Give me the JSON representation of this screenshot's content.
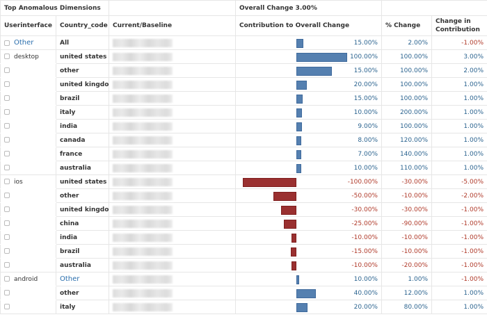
{
  "header": {
    "title": "Top Anomalous Dimensions",
    "overall_change": "Overall Change 3.00%"
  },
  "columns": [
    "Userinterface",
    "Country_code",
    "Current/Baseline",
    "Contribution to Overall Change",
    "% Change",
    "Change in Contribution"
  ],
  "colors": {
    "positive": "#2c6490",
    "negative": "#b03a2a",
    "bar_positive": "#5580b0",
    "bar_negative": "#9a3030"
  },
  "rows": [
    {
      "ui": "Other",
      "ui_link": true,
      "country": "All",
      "contribution": "15.00%",
      "bar": 0.13,
      "pct": "2.00%",
      "cic": "-1.00%"
    },
    {
      "ui": "desktop",
      "country": "united states",
      "contribution": "100.00%",
      "bar": 0.95,
      "pct": "100.00%",
      "cic": "3.00%"
    },
    {
      "ui": "",
      "country": "other",
      "contribution": "15.00%",
      "bar": 0.66,
      "pct": "100.00%",
      "cic": "2.00%"
    },
    {
      "ui": "",
      "country": "united kingdom",
      "contribution": "20.00%",
      "bar": 0.19,
      "pct": "100.00%",
      "cic": "1.00%"
    },
    {
      "ui": "",
      "country": "brazil",
      "contribution": "15.00%",
      "bar": 0.12,
      "pct": "100.00%",
      "cic": "1.00%"
    },
    {
      "ui": "",
      "country": "italy",
      "contribution": "10.00%",
      "bar": 0.1,
      "pct": "200.00%",
      "cic": "1.00%"
    },
    {
      "ui": "",
      "country": "india",
      "contribution": "9.00%",
      "bar": 0.1,
      "pct": "100.00%",
      "cic": "1.00%"
    },
    {
      "ui": "",
      "country": "canada",
      "contribution": "8.00%",
      "bar": 0.09,
      "pct": "120.00%",
      "cic": "1.00%"
    },
    {
      "ui": "",
      "country": "france",
      "contribution": "7.00%",
      "bar": 0.09,
      "pct": "140.00%",
      "cic": "1.00%"
    },
    {
      "ui": "",
      "country": "australia",
      "contribution": "10.00%",
      "bar": 0.09,
      "pct": "110.00%",
      "cic": "1.00%"
    },
    {
      "ui": "ios",
      "country": "united states",
      "contribution": "-100.00%",
      "bar": -1.0,
      "pct": "-30.00%",
      "cic": "-5.00%"
    },
    {
      "ui": "",
      "country": "other",
      "contribution": "-50.00%",
      "bar": -0.43,
      "pct": "-10.00%",
      "cic": "-2.00%"
    },
    {
      "ui": "",
      "country": "united kingdom",
      "contribution": "-30.00%",
      "bar": -0.29,
      "pct": "-30.00%",
      "cic": "-1.00%"
    },
    {
      "ui": "",
      "country": "china",
      "contribution": "-25.00%",
      "bar": -0.23,
      "pct": "-90.00%",
      "cic": "-1.00%"
    },
    {
      "ui": "",
      "country": "india",
      "contribution": "-10.00%",
      "bar": -0.09,
      "pct": "-10.00%",
      "cic": "-1.00%"
    },
    {
      "ui": "",
      "country": "brazil",
      "contribution": "-15.00%",
      "bar": -0.1,
      "pct": "-10.00%",
      "cic": "-1.00%"
    },
    {
      "ui": "",
      "country": "australia",
      "contribution": "-10.00%",
      "bar": -0.09,
      "pct": "-20.00%",
      "cic": "-1.00%"
    },
    {
      "ui": "android",
      "country": "Other",
      "country_link": true,
      "contribution": "10.00%",
      "bar": 0.05,
      "pct": "1.00%",
      "cic": "-1.00%"
    },
    {
      "ui": "",
      "country": "other",
      "contribution": "40.00%",
      "bar": 0.36,
      "pct": "12.00%",
      "cic": "1.00%"
    },
    {
      "ui": "",
      "country": "italy",
      "contribution": "20.00%",
      "bar": 0.21,
      "pct": "80.00%",
      "cic": "1.00%"
    }
  ]
}
